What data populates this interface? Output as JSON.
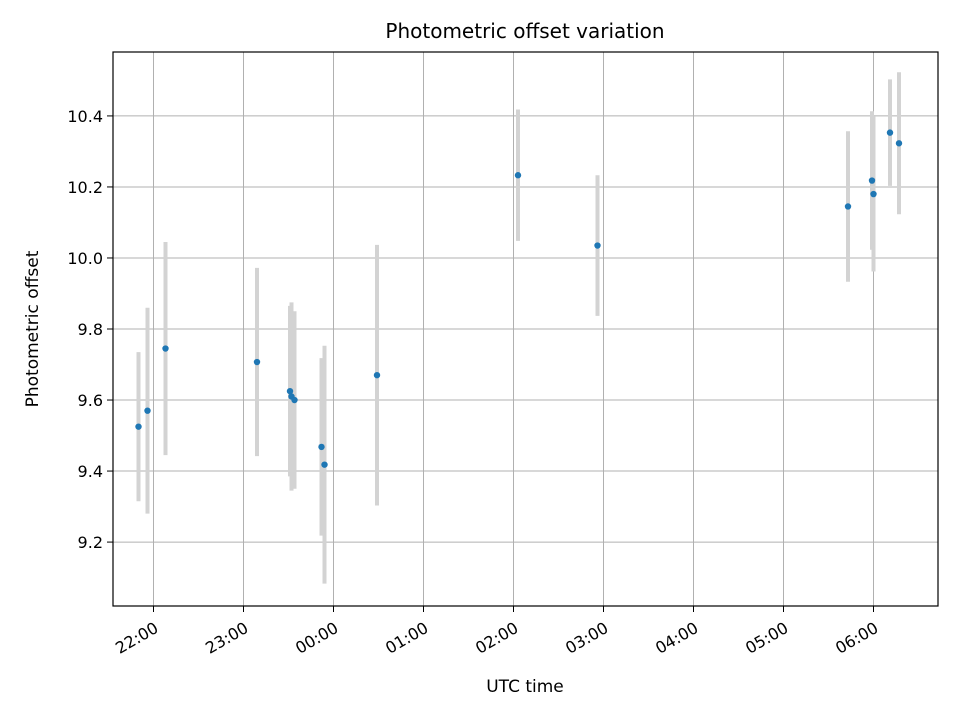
{
  "chart_data": {
    "type": "scatter",
    "title": "Photometric offset variation",
    "xlabel": "UTC time",
    "ylabel": "Photometric offset",
    "x_scale": "time",
    "xlim": [
      "21:33",
      "06:43"
    ],
    "ylim": [
      9.02,
      10.58
    ],
    "x_ticks": [
      "22:00",
      "23:00",
      "00:00",
      "01:00",
      "02:00",
      "03:00",
      "04:00",
      "05:00",
      "06:00"
    ],
    "y_ticks": [
      9.2,
      9.4,
      9.6,
      9.8,
      10.0,
      10.2,
      10.4
    ],
    "grid": true,
    "legend": "none",
    "colors": {
      "point": "#1f77b4",
      "errorbar": "#d3d3d3",
      "grid": "#b0b0b0"
    },
    "points": [
      {
        "x": "21:50",
        "y": 9.525,
        "err": 0.21
      },
      {
        "x": "21:56",
        "y": 9.57,
        "err": 0.29
      },
      {
        "x": "22:08",
        "y": 9.745,
        "err": 0.3
      },
      {
        "x": "23:09",
        "y": 9.707,
        "err": 0.265
      },
      {
        "x": "23:31",
        "y": 9.625,
        "err": 0.24
      },
      {
        "x": "23:32",
        "y": 9.61,
        "err": 0.265
      },
      {
        "x": "23:34",
        "y": 9.6,
        "err": 0.25
      },
      {
        "x": "23:52",
        "y": 9.468,
        "err": 0.25
      },
      {
        "x": "23:54",
        "y": 9.418,
        "err": 0.335
      },
      {
        "x": "00:29",
        "y": 9.67,
        "err": 0.367
      },
      {
        "x": "02:03",
        "y": 10.233,
        "err": 0.185
      },
      {
        "x": "02:56",
        "y": 10.035,
        "err": 0.198
      },
      {
        "x": "05:43",
        "y": 10.145,
        "err": 0.212
      },
      {
        "x": "05:59",
        "y": 10.218,
        "err": 0.195
      },
      {
        "x": "06:00",
        "y": 10.18,
        "err": 0.218
      },
      {
        "x": "06:11",
        "y": 10.353,
        "err": 0.15
      },
      {
        "x": "06:17",
        "y": 10.323,
        "err": 0.2
      }
    ]
  }
}
